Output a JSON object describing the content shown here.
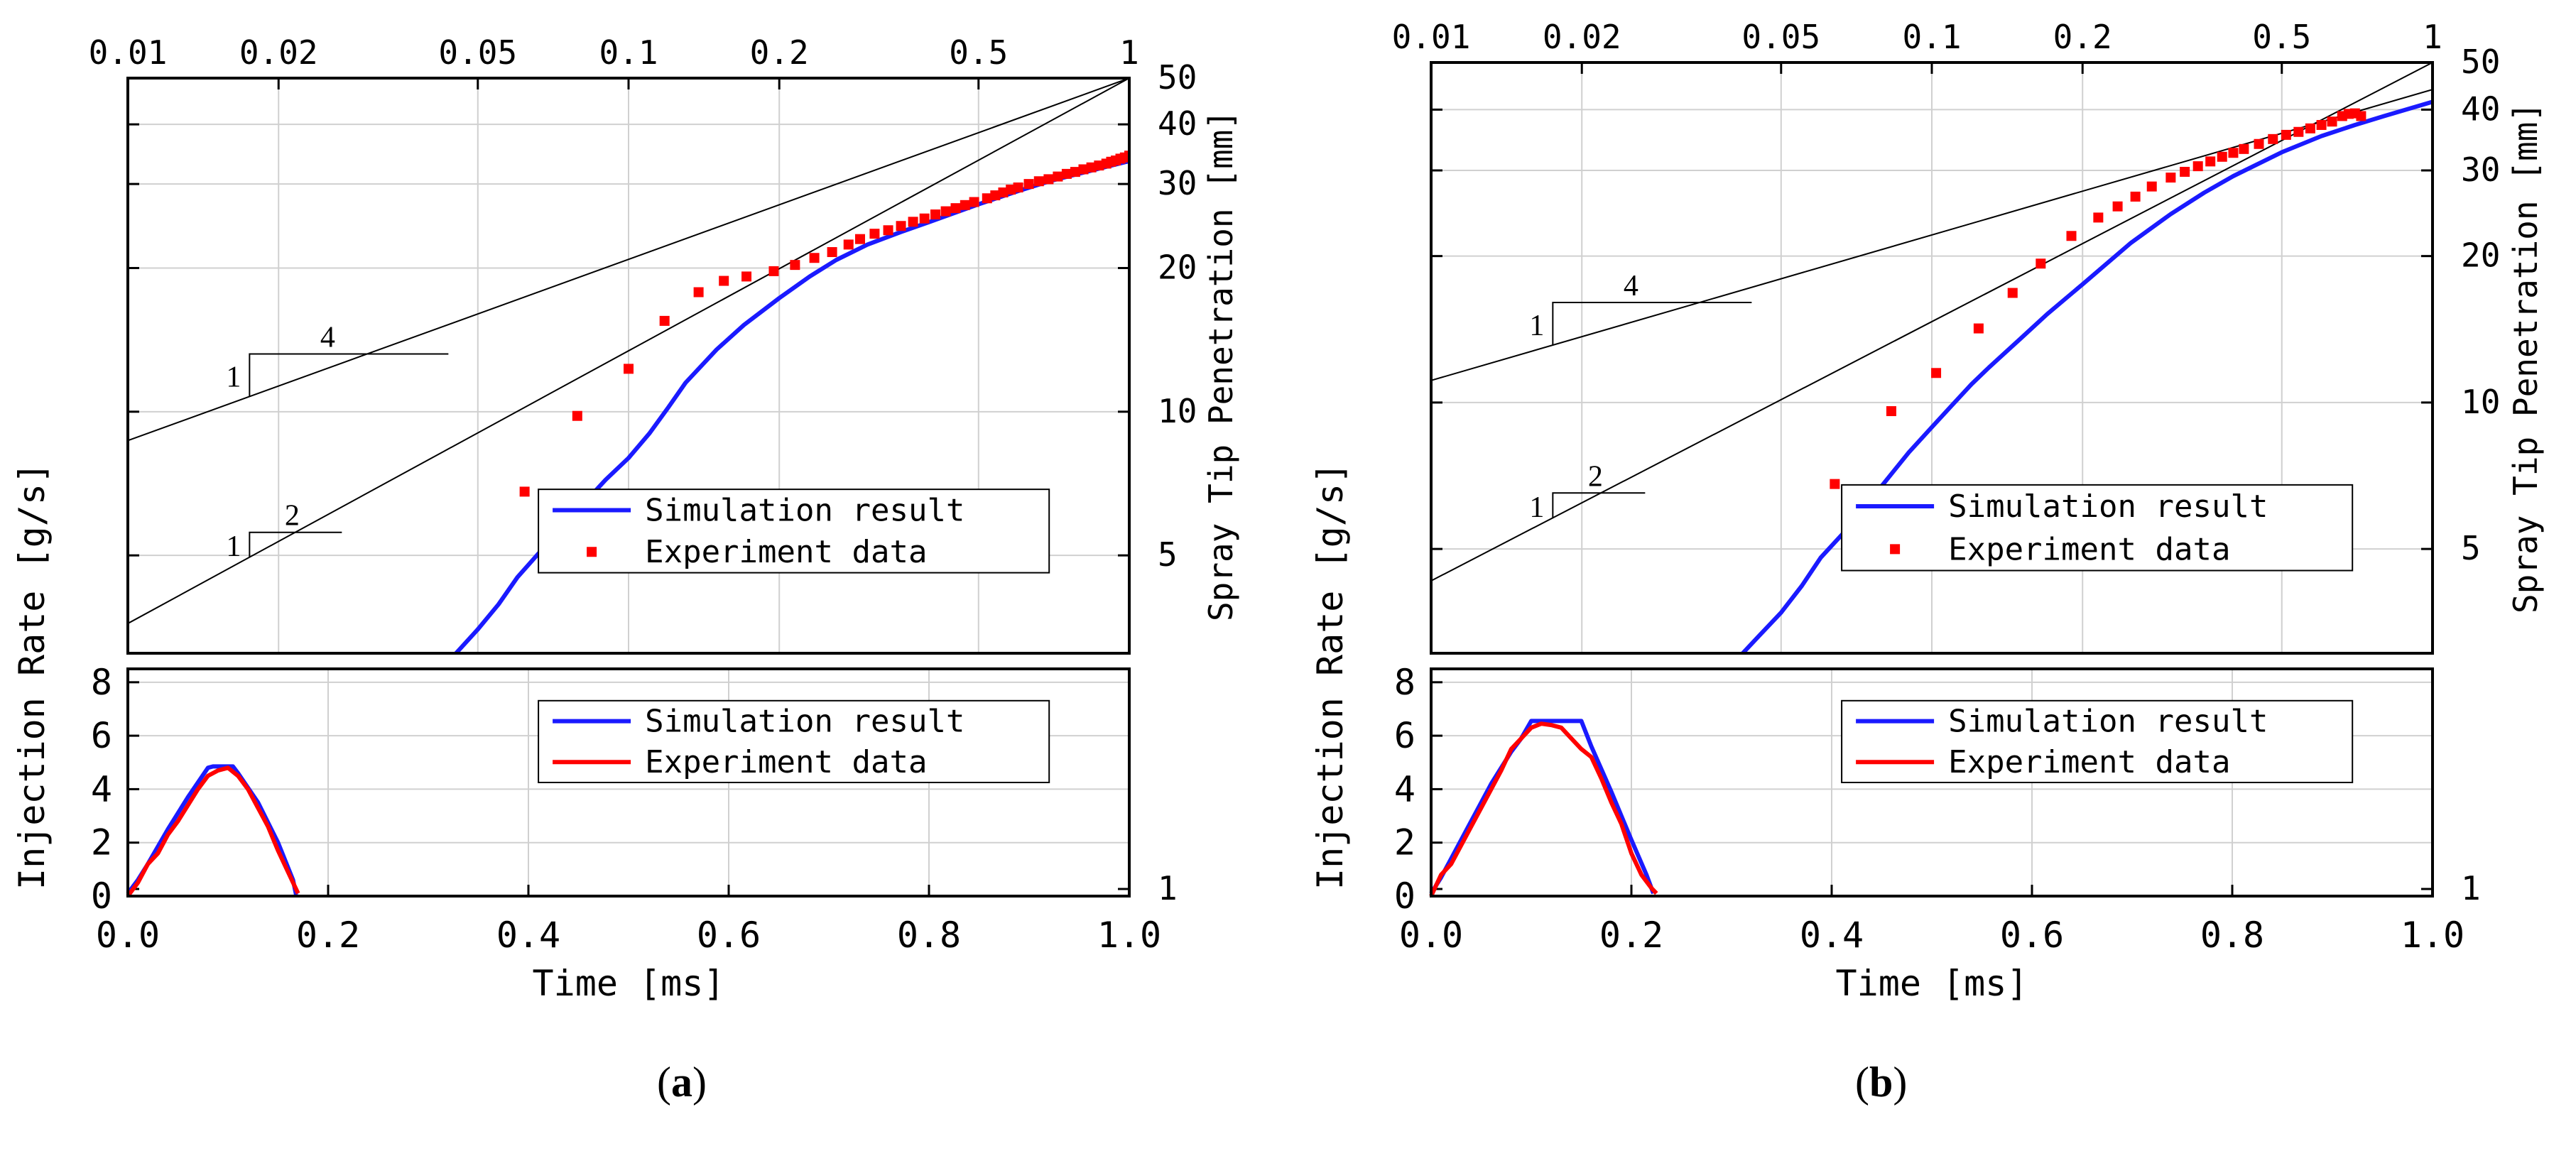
{
  "figure": {
    "panel_labels": [
      {
        "open": "(",
        "letter": "a",
        "close": ")"
      },
      {
        "open": "(",
        "letter": "b",
        "close": ")"
      }
    ]
  },
  "chart_data": [
    {
      "type": "line",
      "panel": "a",
      "top": {
        "x_axis_top": {
          "scale": "log",
          "range": [
            0.01,
            1
          ],
          "tick_values": [
            0.01,
            0.02,
            0.05,
            0.1,
            0.2,
            0.5,
            1
          ],
          "tick_labels": [
            "0.01",
            "0.02",
            "0.05",
            "0.1",
            "0.2",
            "0.5",
            "1"
          ]
        },
        "y_axis_right": {
          "scale": "log",
          "range": [
            1,
            50
          ],
          "label": "Spray Tip Penetration [mm]",
          "tick_values": [
            1,
            5,
            10,
            20,
            30,
            40,
            50
          ],
          "tick_labels": [
            "1",
            "5",
            "10",
            "20",
            "30",
            "40",
            "50"
          ]
        },
        "grid": true,
        "legend": {
          "position": "lower-right",
          "entries": [
            "Simulation result",
            "Experiment data"
          ]
        },
        "series": [
          {
            "name": "Simulation result",
            "style": "line",
            "color": "#1a1aff",
            "x": [
              0.0158,
              0.018,
              0.022,
              0.026,
              0.03,
              0.035,
              0.04,
              0.045,
              0.05,
              0.055,
              0.06,
              0.07,
              0.08,
              0.09,
              0.1,
              0.11,
              0.12,
              0.13,
              0.15,
              0.17,
              0.2,
              0.23,
              0.26,
              0.3,
              0.35,
              0.4,
              0.5,
              0.6,
              0.7,
              0.8,
              0.9,
              1.0
            ],
            "y": [
              1.0,
              1.2,
              1.4,
              1.65,
              1.95,
              2.3,
              2.7,
              3.1,
              3.5,
              3.95,
              4.5,
              5.4,
              6.3,
              7.2,
              8.0,
              9.0,
              10.2,
              11.5,
              13.5,
              15.2,
              17.3,
              19.2,
              20.8,
              22.4,
              23.8,
              25.0,
              27.2,
              29.0,
              30.5,
              31.6,
              32.6,
              33.5
            ]
          },
          {
            "name": "Experiment data",
            "style": "markers",
            "color": "#ff0000",
            "x": [
              0.062,
              0.079,
              0.1,
              0.118,
              0.138,
              0.155,
              0.172,
              0.195,
              0.215,
              0.235,
              0.255,
              0.275,
              0.29,
              0.31,
              0.33,
              0.35,
              0.37,
              0.39,
              0.41,
              0.43,
              0.45,
              0.47,
              0.49,
              0.52,
              0.54,
              0.56,
              0.58,
              0.6,
              0.63,
              0.66,
              0.69,
              0.72,
              0.75,
              0.78,
              0.81,
              0.84,
              0.87,
              0.9,
              0.92,
              0.94,
              0.96,
              0.98,
              1.0
            ],
            "y": [
              6.8,
              9.8,
              12.3,
              15.5,
              17.8,
              18.8,
              19.2,
              19.7,
              20.3,
              21.0,
              21.6,
              22.4,
              23.0,
              23.6,
              24.0,
              24.5,
              25.0,
              25.4,
              25.9,
              26.3,
              26.7,
              27.1,
              27.5,
              28.0,
              28.4,
              28.8,
              29.2,
              29.5,
              30.0,
              30.4,
              30.7,
              31.1,
              31.5,
              31.8,
              32.2,
              32.5,
              32.8,
              33.1,
              33.4,
              33.6,
              33.9,
              34.1,
              34.4
            ]
          }
        ],
        "slope_lines": [
          {
            "slope": "1/4",
            "rise_label": "1",
            "run_label": "4",
            "x": [
              0.01,
              1.0
            ],
            "y": [
              8.7,
              50.0
            ]
          },
          {
            "slope": "1/2",
            "rise_label": "1",
            "run_label": "2",
            "x": [
              0.01,
              1.0
            ],
            "y": [
              3.6,
              50.0
            ]
          }
        ]
      },
      "bottom": {
        "x_axis": {
          "label": "Time [ms]",
          "range": [
            0,
            1
          ],
          "tick_values": [
            0,
            0.2,
            0.4,
            0.6,
            0.8,
            1.0
          ],
          "tick_labels": [
            "0.0",
            "0.2",
            "0.4",
            "0.6",
            "0.8",
            "1.0"
          ]
        },
        "y_axis": {
          "label": "Injection Rate [g/s]",
          "range": [
            0,
            8.5
          ],
          "tick_values": [
            0,
            2,
            4,
            6,
            8
          ],
          "tick_labels": [
            "0",
            "2",
            "4",
            "6",
            "8"
          ]
        },
        "grid": true,
        "legend": {
          "position": "upper-right",
          "entries": [
            "Simulation result",
            "Experiment data"
          ]
        },
        "series": [
          {
            "name": "Simulation result",
            "color": "#1a1aff",
            "x": [
              0.0,
              0.01,
              0.02,
              0.04,
              0.06,
              0.08,
              0.085,
              0.105,
              0.11,
              0.13,
              0.15,
              0.165,
              0.168
            ],
            "y": [
              0.1,
              0.6,
              1.2,
              2.5,
              3.7,
              4.8,
              4.85,
              4.85,
              4.6,
              3.5,
              2.0,
              0.6,
              0.05
            ]
          },
          {
            "name": "Experiment data",
            "color": "#ff0000",
            "x": [
              0.0,
              0.01,
              0.02,
              0.03,
              0.04,
              0.05,
              0.06,
              0.07,
              0.08,
              0.09,
              0.1,
              0.11,
              0.12,
              0.13,
              0.14,
              0.15,
              0.16,
              0.17
            ],
            "y": [
              0.0,
              0.5,
              1.2,
              1.6,
              2.3,
              2.8,
              3.4,
              4.0,
              4.5,
              4.7,
              4.8,
              4.5,
              4.0,
              3.3,
              2.6,
              1.7,
              0.9,
              0.1
            ]
          }
        ]
      }
    },
    {
      "type": "line",
      "panel": "b",
      "top": {
        "x_axis_top": {
          "scale": "log",
          "range": [
            0.01,
            1
          ],
          "tick_values": [
            0.01,
            0.02,
            0.05,
            0.1,
            0.2,
            0.5,
            1
          ],
          "tick_labels": [
            "0.01",
            "0.02",
            "0.05",
            "0.1",
            "0.2",
            "0.5",
            "1"
          ]
        },
        "y_axis_right": {
          "scale": "log",
          "range": [
            1,
            50
          ],
          "label": "Spray Tip Penetration [mm]",
          "tick_values": [
            1,
            5,
            10,
            20,
            30,
            40,
            50
          ],
          "tick_labels": [
            "1",
            "5",
            "10",
            "20",
            "30",
            "40",
            "50"
          ]
        },
        "grid": true,
        "legend": {
          "position": "lower-right",
          "entries": [
            "Simulation result",
            "Experiment data"
          ]
        },
        "series": [
          {
            "name": "Simulation result",
            "style": "line",
            "color": "#1a1aff",
            "x": [
              0.0145,
              0.017,
              0.02,
              0.025,
              0.03,
              0.035,
              0.04,
              0.045,
              0.05,
              0.055,
              0.06,
              0.07,
              0.08,
              0.09,
              0.1,
              0.11,
              0.12,
              0.13,
              0.15,
              0.17,
              0.2,
              0.25,
              0.3,
              0.35,
              0.4,
              0.5,
              0.6,
              0.7,
              0.8,
              0.9,
              1.0
            ],
            "y": [
              1.0,
              1.25,
              1.5,
              1.85,
              2.2,
              2.55,
              2.9,
              3.3,
              3.7,
              4.2,
              4.8,
              5.7,
              6.8,
              7.9,
              8.9,
              9.9,
              10.9,
              11.8,
              13.5,
              15.2,
              17.5,
              21.3,
              24.4,
              27.0,
              29.2,
              32.7,
              35.3,
              37.2,
              38.8,
              40.2,
              41.5
            ]
          },
          {
            "name": "Experiment data",
            "style": "markers",
            "color": "#ff0000",
            "x": [
              0.064,
              0.083,
              0.102,
              0.124,
              0.145,
              0.165,
              0.19,
              0.215,
              0.235,
              0.255,
              0.275,
              0.3,
              0.32,
              0.34,
              0.36,
              0.38,
              0.4,
              0.42,
              0.45,
              0.48,
              0.51,
              0.54,
              0.57,
              0.6,
              0.63,
              0.66,
              0.68,
              0.7,
              0.72
            ],
            "y": [
              6.8,
              9.6,
              11.5,
              14.2,
              16.8,
              19.3,
              22.0,
              24.0,
              25.3,
              26.5,
              27.8,
              29.0,
              29.8,
              30.6,
              31.3,
              32.0,
              32.6,
              33.2,
              34.0,
              34.8,
              35.5,
              36.0,
              36.6,
              37.2,
              37.8,
              38.8,
              39.2,
              39.3,
              38.8
            ]
          }
        ],
        "slope_lines": [
          {
            "slope": "1/4",
            "rise_label": "1",
            "run_label": "4",
            "x": [
              0.01,
              1.0
            ],
            "y": [
              11.1,
              44.0
            ]
          },
          {
            "slope": "1/2",
            "rise_label": "1",
            "run_label": "2",
            "x": [
              0.01,
              1.0
            ],
            "y": [
              4.3,
              50.0
            ]
          }
        ]
      },
      "bottom": {
        "x_axis": {
          "label": "Time [ms]",
          "range": [
            0,
            1
          ],
          "tick_values": [
            0,
            0.2,
            0.4,
            0.6,
            0.8,
            1.0
          ],
          "tick_labels": [
            "0.0",
            "0.2",
            "0.4",
            "0.6",
            "0.8",
            "1.0"
          ]
        },
        "y_axis": {
          "label": "Injection Rate [g/s]",
          "range": [
            0,
            8.5
          ],
          "tick_values": [
            0,
            2,
            4,
            6,
            8
          ],
          "tick_labels": [
            "0",
            "2",
            "4",
            "6",
            "8"
          ]
        },
        "grid": true,
        "legend": {
          "position": "upper-right",
          "entries": [
            "Simulation result",
            "Experiment data"
          ]
        },
        "series": [
          {
            "name": "Simulation result",
            "color": "#1a1aff",
            "x": [
              0.0,
              0.01,
              0.02,
              0.04,
              0.06,
              0.08,
              0.09,
              0.1,
              0.15,
              0.16,
              0.18,
              0.2,
              0.215,
              0.222
            ],
            "y": [
              0.1,
              0.7,
              1.4,
              2.8,
              4.2,
              5.4,
              5.9,
              6.55,
              6.55,
              5.6,
              3.9,
              2.1,
              0.8,
              0.1
            ]
          },
          {
            "name": "Experiment data",
            "color": "#ff0000",
            "x": [
              0.0,
              0.01,
              0.02,
              0.03,
              0.04,
              0.05,
              0.06,
              0.07,
              0.08,
              0.09,
              0.1,
              0.11,
              0.12,
              0.13,
              0.14,
              0.15,
              0.16,
              0.17,
              0.18,
              0.19,
              0.2,
              0.21,
              0.22,
              0.225
            ],
            "y": [
              0.0,
              0.8,
              1.2,
              1.9,
              2.6,
              3.3,
              4.0,
              4.7,
              5.5,
              5.9,
              6.3,
              6.45,
              6.4,
              6.3,
              5.9,
              5.5,
              5.2,
              4.4,
              3.5,
              2.7,
              1.6,
              0.8,
              0.3,
              0.1
            ]
          }
        ]
      }
    }
  ]
}
